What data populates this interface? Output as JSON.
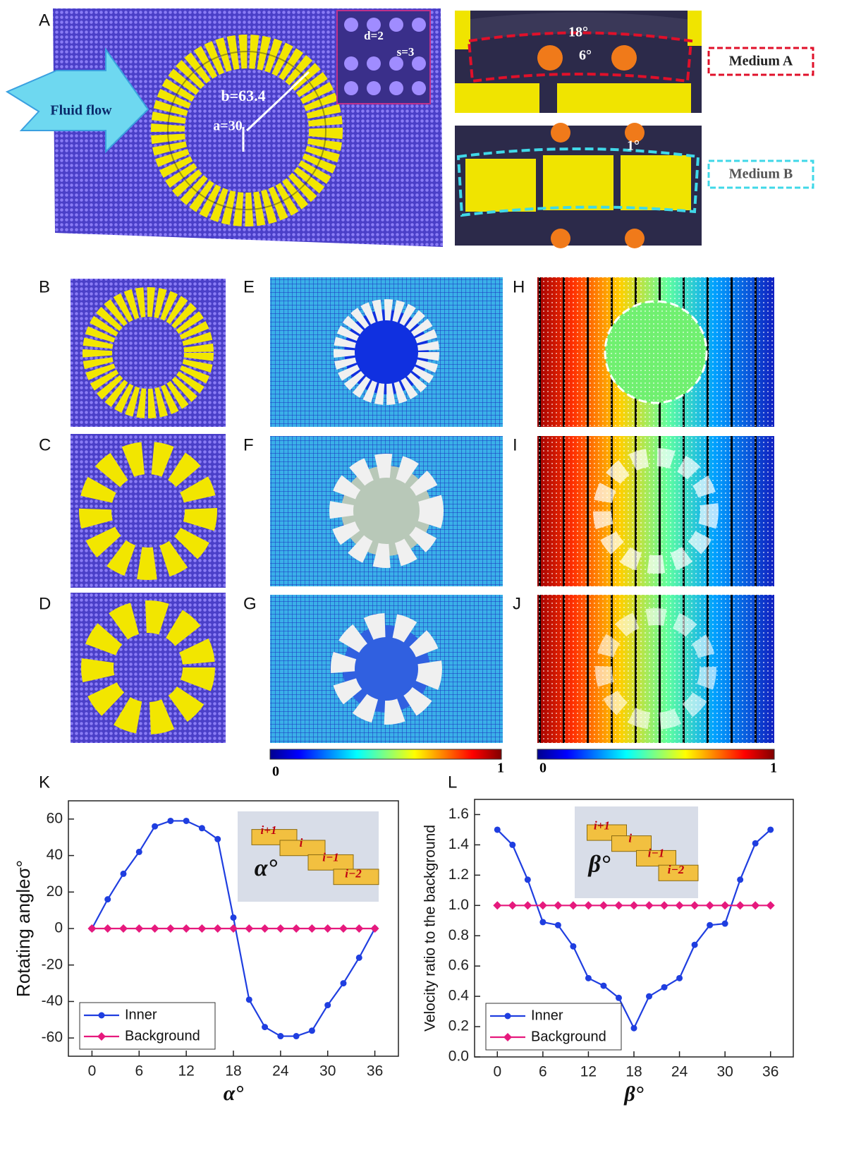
{
  "panels": {
    "A": "A",
    "B": "B",
    "C": "C",
    "D": "D",
    "E": "E",
    "F": "F",
    "G": "G",
    "H": "H",
    "I": "I",
    "J": "J",
    "K": "K",
    "L": "L"
  },
  "annotations": {
    "fluid_flow": "Fluid flow",
    "d": "d=2",
    "s": "s=3",
    "b": "b=63.4",
    "a": "a=30",
    "angle_18": "18°",
    "angle_6": "6°",
    "angle_1": "1°",
    "medium_a": "Medium A",
    "medium_b": "Medium B"
  },
  "colorbars": [
    {
      "min_label": "0",
      "max_label": "1"
    },
    {
      "min_label": "0",
      "max_label": "1"
    }
  ],
  "chart_data": [
    {
      "type": "line",
      "xlabel": "α°",
      "ylabel": "Rotating angleσ°",
      "x": [
        0,
        2,
        4,
        6,
        8,
        10,
        12,
        14,
        16,
        18,
        20,
        22,
        24,
        26,
        28,
        30,
        32,
        34,
        36
      ],
      "series": [
        {
          "name": "Inner",
          "color": "#1f3ee0",
          "marker": "circle",
          "values": [
            0,
            16,
            30,
            42,
            56,
            59,
            59,
            55,
            49,
            6,
            -39,
            -54,
            -59,
            -59,
            -56,
            -42,
            -30,
            -16,
            0
          ]
        },
        {
          "name": "Background",
          "color": "#e6197d",
          "marker": "diamond",
          "values": [
            0,
            0,
            0,
            0,
            0,
            0,
            0,
            0,
            0,
            0,
            0,
            0,
            0,
            0,
            0,
            0,
            0,
            0,
            0
          ]
        }
      ],
      "xlim": [
        -3,
        39
      ],
      "xticks": [
        0,
        6,
        12,
        18,
        24,
        30,
        36
      ],
      "ylim": [
        -70,
        70
      ],
      "yticks": [
        -60,
        -40,
        -20,
        0,
        20,
        40,
        60
      ],
      "legend": "lower left",
      "inset_labels": [
        "i+1",
        "i",
        "i−1",
        "i−2",
        "α°"
      ]
    },
    {
      "type": "line",
      "xlabel": "β°",
      "ylabel": "Velocity ratio to the background",
      "x": [
        0,
        2,
        4,
        6,
        8,
        10,
        12,
        14,
        16,
        18,
        20,
        22,
        24,
        26,
        28,
        30,
        32,
        34,
        36
      ],
      "series": [
        {
          "name": "Inner",
          "color": "#1f3ee0",
          "marker": "circle",
          "values": [
            1.5,
            1.4,
            1.17,
            0.89,
            0.87,
            0.73,
            0.52,
            0.47,
            0.39,
            0.19,
            0.4,
            0.46,
            0.52,
            0.74,
            0.87,
            0.88,
            1.17,
            1.41,
            1.5
          ]
        },
        {
          "name": "Background",
          "color": "#e6197d",
          "marker": "diamond",
          "values": [
            1,
            1,
            1,
            1,
            1,
            1,
            1,
            1,
            1,
            1,
            1,
            1,
            1,
            1,
            1,
            1,
            1,
            1,
            1
          ]
        }
      ],
      "xlim": [
        -3,
        39
      ],
      "xticks": [
        0,
        6,
        12,
        18,
        24,
        30,
        36
      ],
      "ylim": [
        0,
        1.7
      ],
      "yticks": [
        {
          "value": 0,
          "label": "0.0"
        },
        0.2,
        0.4,
        0.6,
        0.8,
        {
          "value": 1,
          "label": "1.0"
        },
        1.2,
        1.4,
        1.6
      ],
      "legend": "lower left",
      "inset_labels": [
        "i+1",
        "i",
        "i−1",
        "i−2",
        "β°"
      ]
    }
  ]
}
